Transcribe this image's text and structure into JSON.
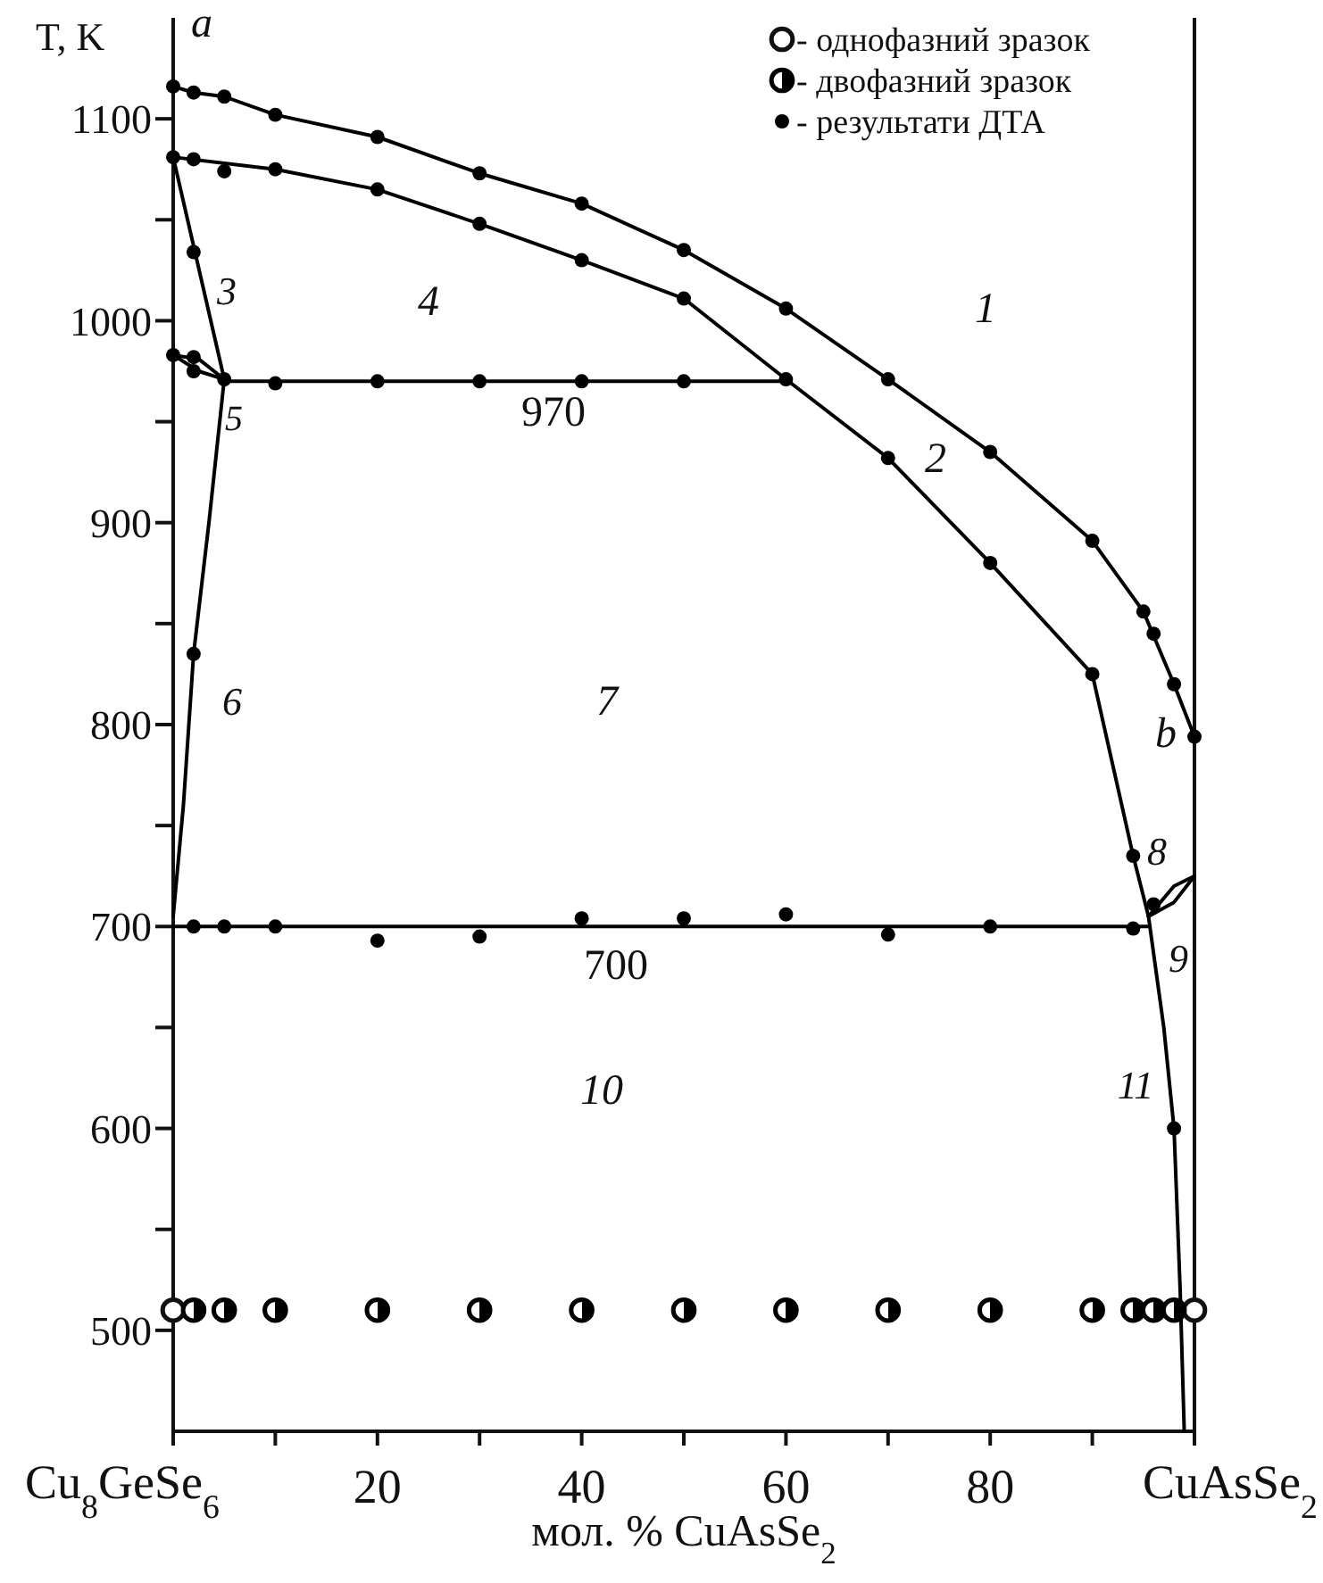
{
  "chart_data": {
    "type": "scatter",
    "xlabel": "мол. % CuAsSe$_{2}$",
    "ylabel": "T, K",
    "xlim": [
      0,
      100
    ],
    "ylim": [
      450,
      1150
    ],
    "xticks": [
      {
        "value": 0,
        "label": null
      },
      {
        "value": 10,
        "label": null
      },
      20,
      {
        "value": 30,
        "label": null
      },
      40,
      {
        "value": 50,
        "label": null
      },
      60,
      {
        "value": 70,
        "label": null
      },
      80,
      {
        "value": 90,
        "label": null
      },
      {
        "value": 100,
        "label": null
      }
    ],
    "yticks": [
      500,
      {
        "value": 550,
        "label": null
      },
      600,
      {
        "value": 650,
        "label": null
      },
      700,
      {
        "value": 750,
        "label": null
      },
      800,
      {
        "value": 850,
        "label": null
      },
      900,
      {
        "value": 950,
        "label": null
      },
      1000,
      {
        "value": 1050,
        "label": null
      },
      1100
    ],
    "grid": false,
    "legend": "top right",
    "line_style": "solid",
    "series": [
      {
        "type": "line",
        "color": "#000000",
        "marker": "none",
        "x": [
          0,
          2,
          5,
          10,
          20,
          30,
          40,
          50,
          60,
          70,
          80,
          90,
          95,
          98,
          100
        ],
        "values": [
          1116,
          1113,
          1111,
          1102,
          1091,
          1073,
          1058,
          1035,
          1006,
          971,
          935,
          891,
          856,
          820,
          794
        ]
      },
      {
        "type": "line",
        "color": "#000000",
        "marker": "none",
        "x": [
          0,
          10,
          20,
          30,
          40,
          50,
          60,
          70,
          80,
          90,
          94,
          95.5
        ],
        "values": [
          1081,
          1075,
          1065,
          1048,
          1030,
          1011,
          971,
          932,
          880,
          825,
          735,
          705
        ]
      },
      {
        "type": "line",
        "color": "#000000",
        "marker": "none",
        "x": [
          0,
          5
        ],
        "values": [
          1081,
          971
        ]
      },
      {
        "type": "line",
        "color": "#000000",
        "marker": "none",
        "x": [
          5,
          60
        ],
        "values": [
          970,
          970
        ]
      },
      {
        "type": "line",
        "color": "#000000",
        "marker": "none",
        "x": [
          0,
          2.5,
          5
        ],
        "values": [
          983,
          981,
          971
        ]
      },
      {
        "type": "line",
        "color": "#000000",
        "marker": "none",
        "x": [
          0,
          2.5,
          5
        ],
        "values": [
          983,
          975,
          971
        ]
      },
      {
        "type": "line",
        "color": "#000000",
        "marker": "none",
        "x": [
          0,
          1,
          2,
          3.5,
          5
        ],
        "values": [
          705,
          760,
          835,
          900,
          971
        ]
      },
      {
        "type": "line",
        "color": "#000000",
        "marker": "none",
        "x": [
          0,
          95.5
        ],
        "values": [
          700,
          700
        ]
      },
      {
        "type": "line",
        "color": "#000000",
        "marker": "none",
        "x": [
          95.5,
          98,
          100
        ],
        "values": [
          705,
          720,
          725
        ]
      },
      {
        "type": "line",
        "color": "#000000",
        "marker": "none",
        "x": [
          95.5,
          98,
          100
        ],
        "values": [
          705,
          712,
          725
        ]
      },
      {
        "type": "line",
        "color": "#000000",
        "marker": "none",
        "x": [
          95.5,
          97,
          98,
          98.6,
          99
        ],
        "values": [
          705,
          650,
          600,
          520,
          450
        ]
      },
      {
        "name": "- однофазний зразок",
        "color": "#ffffff",
        "marker": "circle",
        "x": [
          0,
          100
        ],
        "values": [
          510,
          510
        ]
      },
      {
        "name": "- двофазний зразок",
        "color": "#000000",
        "marker": "circle",
        "x": [
          2,
          5,
          10,
          20,
          30,
          40,
          50,
          60,
          70,
          80,
          90,
          94,
          96,
          98
        ],
        "values": [
          510,
          510,
          510,
          510,
          510,
          510,
          510,
          510,
          510,
          510,
          510,
          510,
          510,
          510
        ]
      },
      {
        "name": "- результати ДТА",
        "color": "#000000",
        "marker": "circle",
        "x": [
          0,
          2,
          5,
          10,
          20,
          30,
          40,
          50,
          60,
          70,
          80,
          90,
          95,
          96,
          98,
          100,
          0,
          2,
          5,
          10,
          20,
          30,
          40,
          50,
          60,
          70,
          80,
          90,
          94,
          2,
          0,
          2,
          2,
          5,
          10,
          20,
          30,
          40,
          50,
          2,
          2,
          5,
          10,
          20,
          30,
          40,
          50,
          60,
          70,
          80,
          94,
          96,
          98
        ],
        "values": [
          1116,
          1113,
          1111,
          1102,
          1091,
          1073,
          1058,
          1035,
          1006,
          971,
          935,
          891,
          856,
          845,
          820,
          794,
          1081,
          1080,
          1074,
          1075,
          1065,
          1048,
          1030,
          1011,
          971,
          932,
          880,
          825,
          735,
          1034,
          983,
          982,
          975,
          971,
          969,
          970,
          970,
          970,
          970,
          835,
          700,
          700,
          700,
          693,
          695,
          704,
          704,
          706,
          696,
          700,
          699,
          711,
          600
        ]
      }
    ],
    "annotations": [
      "a",
      "b",
      "1",
      "2",
      "3",
      "4",
      "5",
      "6",
      "7",
      "8",
      "9",
      "10",
      "11",
      "970",
      "700",
      "Cu$_{8}$GeSe$_{6}$",
      "CuAsSe$_{2}$"
    ]
  }
}
